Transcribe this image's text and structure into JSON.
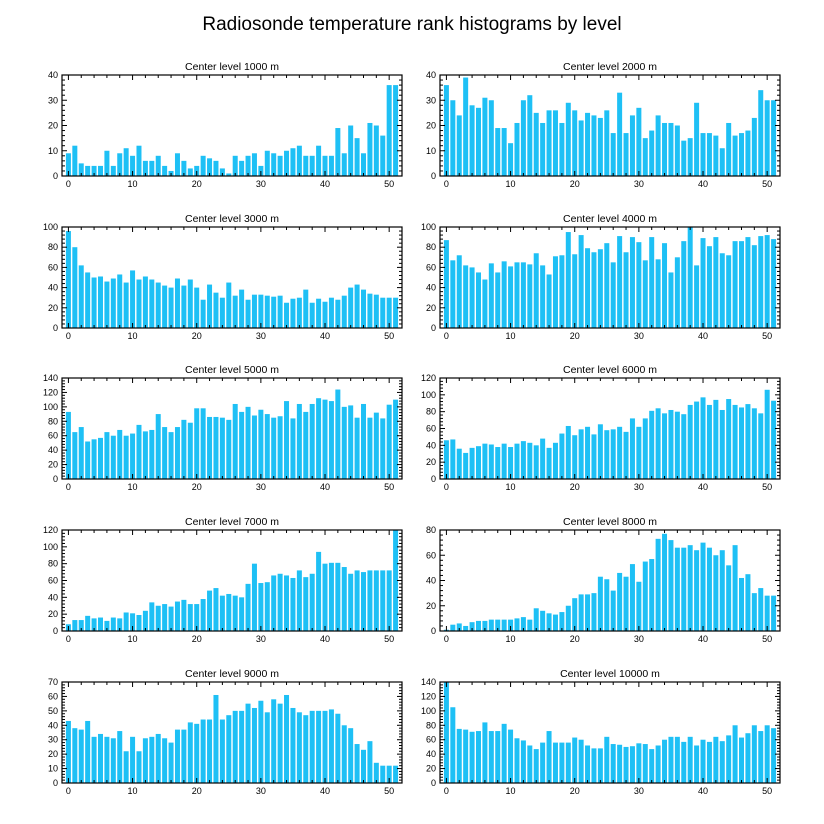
{
  "figure": {
    "title": "Radiosonde temperature rank histograms by level",
    "bar_color": "#1ec0f5",
    "frame_color": "#000000"
  },
  "chart_data": [
    {
      "type": "bar",
      "title": "Center level 1000 m",
      "xlim": [
        -1,
        52
      ],
      "ylim": [
        0,
        40
      ],
      "xticks": [
        0,
        10,
        20,
        30,
        40,
        50
      ],
      "yticks": [
        0,
        10,
        20,
        30,
        40
      ],
      "x": [
        0,
        1,
        2,
        3,
        4,
        5,
        6,
        7,
        8,
        9,
        10,
        11,
        12,
        13,
        14,
        15,
        16,
        17,
        18,
        19,
        20,
        21,
        22,
        23,
        24,
        25,
        26,
        27,
        28,
        29,
        30,
        31,
        32,
        33,
        34,
        35,
        36,
        37,
        38,
        39,
        40,
        41,
        42,
        43,
        44,
        45,
        46,
        47,
        48,
        49,
        50,
        51
      ],
      "values": [
        9,
        12,
        5,
        4,
        4,
        4,
        10,
        4,
        9,
        11,
        8,
        12,
        6,
        6,
        8,
        4,
        2,
        9,
        6,
        3,
        4,
        8,
        7,
        6,
        3,
        1,
        8,
        6,
        8,
        9,
        4,
        10,
        9,
        8,
        10,
        11,
        12,
        8,
        8,
        12,
        8,
        8,
        19,
        9,
        20,
        15,
        9,
        21,
        20,
        16,
        36,
        36
      ]
    },
    {
      "type": "bar",
      "title": "Center level 2000 m",
      "xlim": [
        -1,
        52
      ],
      "ylim": [
        0,
        40
      ],
      "xticks": [
        0,
        10,
        20,
        30,
        40,
        50
      ],
      "yticks": [
        0,
        10,
        20,
        30,
        40
      ],
      "x": [
        0,
        1,
        2,
        3,
        4,
        5,
        6,
        7,
        8,
        9,
        10,
        11,
        12,
        13,
        14,
        15,
        16,
        17,
        18,
        19,
        20,
        21,
        22,
        23,
        24,
        25,
        26,
        27,
        28,
        29,
        30,
        31,
        32,
        33,
        34,
        35,
        36,
        37,
        38,
        39,
        40,
        41,
        42,
        43,
        44,
        45,
        46,
        47,
        48,
        49,
        50,
        51
      ],
      "values": [
        36,
        30,
        24,
        39,
        28,
        27,
        31,
        30,
        19,
        19,
        13,
        21,
        30,
        32,
        25,
        21,
        26,
        26,
        21,
        29,
        26,
        22,
        25,
        24,
        23,
        26,
        17,
        33,
        17,
        24,
        27,
        15,
        18,
        24,
        21,
        21,
        20,
        14,
        15,
        29,
        17,
        17,
        16,
        11,
        21,
        16,
        17,
        18,
        23,
        34,
        30,
        30
      ]
    },
    {
      "type": "bar",
      "title": "Center level 3000 m",
      "xlim": [
        -1,
        52
      ],
      "ylim": [
        0,
        100
      ],
      "xticks": [
        0,
        10,
        20,
        30,
        40,
        50
      ],
      "yticks": [
        0,
        20,
        40,
        60,
        80,
        100
      ],
      "x": [
        0,
        1,
        2,
        3,
        4,
        5,
        6,
        7,
        8,
        9,
        10,
        11,
        12,
        13,
        14,
        15,
        16,
        17,
        18,
        19,
        20,
        21,
        22,
        23,
        24,
        25,
        26,
        27,
        28,
        29,
        30,
        31,
        32,
        33,
        34,
        35,
        36,
        37,
        38,
        39,
        40,
        41,
        42,
        43,
        44,
        45,
        46,
        47,
        48,
        49,
        50,
        51
      ],
      "values": [
        96,
        80,
        62,
        55,
        50,
        51,
        46,
        49,
        53,
        45,
        57,
        48,
        51,
        48,
        45,
        42,
        40,
        49,
        42,
        48,
        40,
        28,
        43,
        35,
        30,
        45,
        32,
        38,
        28,
        33,
        33,
        32,
        31,
        32,
        25,
        29,
        30,
        38,
        25,
        29,
        26,
        30,
        28,
        32,
        40,
        43,
        38,
        34,
        33,
        30,
        30,
        30
      ]
    },
    {
      "type": "bar",
      "title": "Center level 4000 m",
      "xlim": [
        -1,
        52
      ],
      "ylim": [
        0,
        100
      ],
      "xticks": [
        0,
        10,
        20,
        30,
        40,
        50
      ],
      "yticks": [
        0,
        20,
        40,
        60,
        80,
        100
      ],
      "x": [
        0,
        1,
        2,
        3,
        4,
        5,
        6,
        7,
        8,
        9,
        10,
        11,
        12,
        13,
        14,
        15,
        16,
        17,
        18,
        19,
        20,
        21,
        22,
        23,
        24,
        25,
        26,
        27,
        28,
        29,
        30,
        31,
        32,
        33,
        34,
        35,
        36,
        37,
        38,
        39,
        40,
        41,
        42,
        43,
        44,
        45,
        46,
        47,
        48,
        49,
        50,
        51
      ],
      "values": [
        87,
        67,
        72,
        62,
        60,
        55,
        48,
        64,
        55,
        66,
        61,
        65,
        65,
        63,
        74,
        62,
        53,
        71,
        72,
        95,
        73,
        92,
        79,
        75,
        78,
        84,
        65,
        91,
        75,
        90,
        85,
        67,
        90,
        68,
        84,
        55,
        70,
        86,
        100,
        62,
        89,
        81,
        90,
        74,
        72,
        86,
        86,
        90,
        82,
        91,
        92,
        88
      ]
    },
    {
      "type": "bar",
      "title": "Center level 5000 m",
      "xlim": [
        -1,
        52
      ],
      "ylim": [
        0,
        140
      ],
      "xticks": [
        0,
        10,
        20,
        30,
        40,
        50
      ],
      "yticks": [
        0,
        20,
        40,
        60,
        80,
        100,
        120,
        140
      ],
      "x": [
        0,
        1,
        2,
        3,
        4,
        5,
        6,
        7,
        8,
        9,
        10,
        11,
        12,
        13,
        14,
        15,
        16,
        17,
        18,
        19,
        20,
        21,
        22,
        23,
        24,
        25,
        26,
        27,
        28,
        29,
        30,
        31,
        32,
        33,
        34,
        35,
        36,
        37,
        38,
        39,
        40,
        41,
        42,
        43,
        44,
        45,
        46,
        47,
        48,
        49,
        50,
        51
      ],
      "values": [
        93,
        65,
        72,
        52,
        55,
        57,
        65,
        60,
        68,
        60,
        63,
        75,
        66,
        68,
        90,
        72,
        65,
        72,
        82,
        78,
        98,
        98,
        86,
        86,
        85,
        82,
        104,
        93,
        100,
        88,
        96,
        90,
        85,
        87,
        108,
        84,
        104,
        93,
        104,
        112,
        110,
        108,
        124,
        100,
        102,
        85,
        104,
        85,
        92,
        84,
        103,
        110
      ]
    },
    {
      "type": "bar",
      "title": "Center level 6000 m",
      "xlim": [
        -1,
        52
      ],
      "ylim": [
        0,
        120
      ],
      "xticks": [
        0,
        10,
        20,
        30,
        40,
        50
      ],
      "yticks": [
        0,
        20,
        40,
        60,
        80,
        100,
        120
      ],
      "x": [
        0,
        1,
        2,
        3,
        4,
        5,
        6,
        7,
        8,
        9,
        10,
        11,
        12,
        13,
        14,
        15,
        16,
        17,
        18,
        19,
        20,
        21,
        22,
        23,
        24,
        25,
        26,
        27,
        28,
        29,
        30,
        31,
        32,
        33,
        34,
        35,
        36,
        37,
        38,
        39,
        40,
        41,
        42,
        43,
        44,
        45,
        46,
        47,
        48,
        49,
        50,
        51
      ],
      "values": [
        46,
        47,
        36,
        31,
        37,
        39,
        42,
        41,
        38,
        42,
        38,
        42,
        45,
        43,
        40,
        48,
        37,
        43,
        54,
        63,
        52,
        59,
        62,
        53,
        65,
        58,
        59,
        62,
        56,
        72,
        62,
        72,
        81,
        84,
        78,
        82,
        80,
        77,
        88,
        92,
        97,
        88,
        94,
        82,
        95,
        88,
        85,
        89,
        84,
        78,
        106,
        93
      ]
    },
    {
      "type": "bar",
      "title": "Center level 7000 m",
      "xlim": [
        -1,
        52
      ],
      "ylim": [
        0,
        120
      ],
      "xticks": [
        0,
        10,
        20,
        30,
        40,
        50
      ],
      "yticks": [
        0,
        20,
        40,
        60,
        80,
        100,
        120
      ],
      "x": [
        0,
        1,
        2,
        3,
        4,
        5,
        6,
        7,
        8,
        9,
        10,
        11,
        12,
        13,
        14,
        15,
        16,
        17,
        18,
        19,
        20,
        21,
        22,
        23,
        24,
        25,
        26,
        27,
        28,
        29,
        30,
        31,
        32,
        33,
        34,
        35,
        36,
        37,
        38,
        39,
        40,
        41,
        42,
        43,
        44,
        45,
        46,
        47,
        48,
        49,
        50,
        51
      ],
      "values": [
        8,
        13,
        13,
        18,
        15,
        16,
        12,
        16,
        15,
        22,
        21,
        19,
        24,
        34,
        30,
        32,
        29,
        35,
        37,
        32,
        32,
        38,
        48,
        51,
        42,
        44,
        42,
        40,
        56,
        80,
        57,
        58,
        66,
        68,
        66,
        63,
        72,
        64,
        68,
        94,
        80,
        81,
        81,
        76,
        68,
        72,
        70,
        72,
        72,
        72,
        72,
        120
      ]
    },
    {
      "type": "bar",
      "title": "Center level 8000 m",
      "xlim": [
        -1,
        52
      ],
      "ylim": [
        0,
        80
      ],
      "xticks": [
        0,
        10,
        20,
        30,
        40,
        50
      ],
      "yticks": [
        0,
        20,
        40,
        60,
        80
      ],
      "x": [
        0,
        1,
        2,
        3,
        4,
        5,
        6,
        7,
        8,
        9,
        10,
        11,
        12,
        13,
        14,
        15,
        16,
        17,
        18,
        19,
        20,
        21,
        22,
        23,
        24,
        25,
        26,
        27,
        28,
        29,
        30,
        31,
        32,
        33,
        34,
        35,
        36,
        37,
        38,
        39,
        40,
        41,
        42,
        43,
        44,
        45,
        46,
        47,
        48,
        49,
        50,
        51
      ],
      "values": [
        1,
        5,
        6,
        4,
        7,
        8,
        8,
        9,
        9,
        9,
        9,
        10,
        11,
        9,
        18,
        16,
        14,
        13,
        15,
        20,
        26,
        29,
        29,
        30,
        43,
        41,
        32,
        46,
        43,
        53,
        39,
        55,
        57,
        73,
        77,
        72,
        66,
        66,
        68,
        64,
        70,
        66,
        60,
        64,
        52,
        68,
        42,
        45,
        30,
        34,
        28,
        28
      ]
    },
    {
      "type": "bar",
      "title": "Center level 9000 m",
      "xlim": [
        -1,
        52
      ],
      "ylim": [
        0,
        70
      ],
      "xticks": [
        0,
        10,
        20,
        30,
        40,
        50
      ],
      "yticks": [
        0,
        10,
        20,
        30,
        40,
        50,
        60,
        70
      ],
      "x": [
        0,
        1,
        2,
        3,
        4,
        5,
        6,
        7,
        8,
        9,
        10,
        11,
        12,
        13,
        14,
        15,
        16,
        17,
        18,
        19,
        20,
        21,
        22,
        23,
        24,
        25,
        26,
        27,
        28,
        29,
        30,
        31,
        32,
        33,
        34,
        35,
        36,
        37,
        38,
        39,
        40,
        41,
        42,
        43,
        44,
        45,
        46,
        47,
        48,
        49,
        50,
        51
      ],
      "values": [
        43,
        38,
        37,
        43,
        32,
        34,
        32,
        31,
        36,
        22,
        32,
        22,
        31,
        32,
        34,
        31,
        28,
        37,
        37,
        42,
        41,
        44,
        44,
        61,
        44,
        47,
        50,
        50,
        55,
        52,
        57,
        49,
        58,
        55,
        61,
        52,
        49,
        47,
        50,
        50,
        50,
        51,
        48,
        40,
        38,
        27,
        23,
        29,
        14,
        12,
        12,
        12
      ]
    },
    {
      "type": "bar",
      "title": "Center level 10000 m",
      "xlim": [
        -1,
        52
      ],
      "ylim": [
        0,
        140
      ],
      "xticks": [
        0,
        10,
        20,
        30,
        40,
        50
      ],
      "yticks": [
        0,
        20,
        40,
        60,
        80,
        100,
        120,
        140
      ],
      "x": [
        0,
        1,
        2,
        3,
        4,
        5,
        6,
        7,
        8,
        9,
        10,
        11,
        12,
        13,
        14,
        15,
        16,
        17,
        18,
        19,
        20,
        21,
        22,
        23,
        24,
        25,
        26,
        27,
        28,
        29,
        30,
        31,
        32,
        33,
        34,
        35,
        36,
        37,
        38,
        39,
        40,
        41,
        42,
        43,
        44,
        45,
        46,
        47,
        48,
        49,
        50,
        51
      ],
      "values": [
        140,
        105,
        75,
        74,
        71,
        72,
        84,
        72,
        72,
        82,
        74,
        62,
        59,
        52,
        47,
        56,
        72,
        56,
        56,
        56,
        63,
        60,
        52,
        48,
        48,
        64,
        54,
        53,
        50,
        51,
        55,
        54,
        47,
        52,
        60,
        64,
        64,
        57,
        64,
        52,
        60,
        57,
        64,
        58,
        66,
        80,
        63,
        69,
        80,
        72,
        80,
        76
      ]
    }
  ]
}
